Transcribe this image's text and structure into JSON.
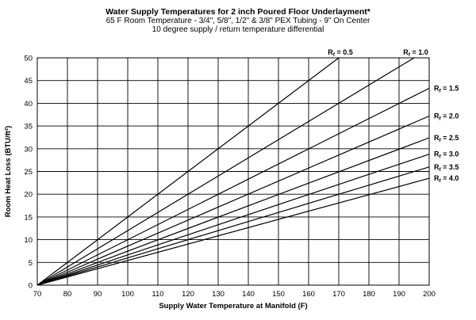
{
  "chart_data": {
    "type": "line",
    "title": "Water Supply Temperatures for 2 inch Poured Floor Underlayment*",
    "subtitle": "65 F Room Temperature - 3/4\", 5/8\", 1/2\" & 3/8\" PEX Tubing - 9\" On Center",
    "subtitle2": "10 degree supply / return temperature differential",
    "xlabel": "Supply Water Temperature at Manifold (F)",
    "ylabel": "Room Heat Loss (BTU/ft²)",
    "xlim": [
      70,
      200
    ],
    "ylim": [
      0,
      50
    ],
    "xticks": [
      70,
      80,
      90,
      100,
      110,
      120,
      130,
      140,
      150,
      160,
      170,
      180,
      190,
      200
    ],
    "yticks": [
      0,
      5,
      10,
      15,
      20,
      25,
      30,
      35,
      40,
      45,
      50
    ],
    "grid": true,
    "series": [
      {
        "name": "Rf = 0.5",
        "x": [
          70,
          170
        ],
        "y": [
          0,
          50
        ]
      },
      {
        "name": "Rf = 1.0",
        "x": [
          70,
          195
        ],
        "y": [
          0,
          50
        ]
      },
      {
        "name": "Rf = 1.5",
        "x": [
          70,
          200
        ],
        "y": [
          0,
          43.3
        ]
      },
      {
        "name": "Rf = 2.0",
        "x": [
          70,
          200
        ],
        "y": [
          0,
          37.2
        ]
      },
      {
        "name": "Rf = 2.5",
        "x": [
          70,
          200
        ],
        "y": [
          0,
          32.4
        ]
      },
      {
        "name": "Rf = 3.0",
        "x": [
          70,
          200
        ],
        "y": [
          0,
          28.8
        ]
      },
      {
        "name": "Rf = 3.5",
        "x": [
          70,
          200
        ],
        "y": [
          0,
          26
        ]
      },
      {
        "name": "Rf = 4.0",
        "x": [
          70,
          200
        ],
        "y": [
          0,
          23.5
        ]
      }
    ]
  }
}
